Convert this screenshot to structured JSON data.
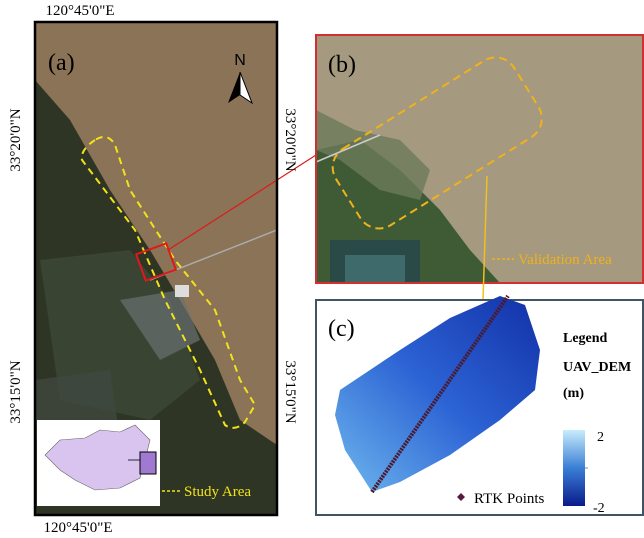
{
  "panel_a": {
    "label": "(a)",
    "north": "N",
    "lon_top": "120°45'0\"E",
    "lon_bottom": "120°45'0\"E",
    "lat_left": [
      "33°20'0\"N",
      "33°15'0\"N"
    ],
    "lat_right": [
      "33°20'0\"N",
      "33°15'0\"N"
    ],
    "legend": "Study Area"
  },
  "panel_b": {
    "label": "(b)",
    "legend": "Validation Area"
  },
  "panel_c": {
    "label": "(c)",
    "legend_title": "Legend",
    "layer": "UAV_DEM",
    "unit": "(m)",
    "max": 2,
    "min": -2,
    "points": "RTK Points"
  }
}
